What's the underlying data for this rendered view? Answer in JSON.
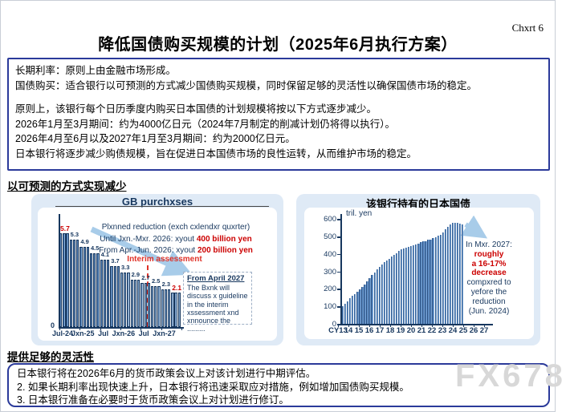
{
  "page": {
    "corner_label": "Chxrt 6",
    "title": "降低国债购买规模的计划（2025年6月执行方案）",
    "watermark": "FX678"
  },
  "policy_box": {
    "lines": [
      "长期利率：原则上由金融市场形成。",
      "国债购买：适合银行以可预测的方式减少国债购买规模，同时保留足够的灵活性以确保国债市场的稳定。",
      "",
      "原则上，该银行每个日历季度内购买日本国债的计划规模将按以下方式逐步减少。",
      "2026年1月至3月期间：约为4000亿日元（2024年7月制定的削减计划仍将得以执行）。",
      "2026年4月至6月以及2027年1月至3月期间：约为2000亿日元。",
      "日本银行将逐步减少购债规模，旨在促进日本国债市场的良性运转，从而维护市场的稳定。"
    ]
  },
  "sections": {
    "predictable": "以可预测的方式实现减少",
    "flexibility": "提供足够的灵活性"
  },
  "flex_box": {
    "lines": [
      "日本银行将在2026年6月的货币政策会议上对该计划进行中期评估。",
      "2. 如果长期利率出现快速上升，日本银行将迅速采取应对措施，例如增加国债购买规模。",
      "3. 日本银行准备在必要时于货币政策会议上对计划进行修订。"
    ]
  },
  "chart_data": [
    {
      "type": "bar",
      "title": "GB purchxses",
      "x_tick_labels": [
        "Jul-24",
        "Jxn-25",
        "Jul",
        "Jxn-26",
        "Jul",
        "Jxn-27"
      ],
      "step_values": [
        5.7,
        5.3,
        4.9,
        4.5,
        4.1,
        3.7,
        3.3,
        2.9,
        2.7,
        2.5,
        2.3,
        2.1
      ],
      "value_labels": [
        "5.7",
        "5.3",
        "4.9",
        "4.5",
        "4.1",
        "3.7",
        "3.3",
        "2.9",
        "2.7",
        "2.5",
        "2.3",
        "2.1"
      ],
      "bars_per_step": 3,
      "red_label_steps": [
        0,
        11
      ],
      "actual_steps": 6,
      "ylim": [
        0,
        6
      ],
      "y_zero_label": "0",
      "annotations": {
        "planned": "Plxnned reduction (exch cxlendxr quxrter)",
        "until_prefix": "Until Jxn.-Mxr. 2026: xyout ",
        "until_red": "400 billion yen",
        "from_prefix": "From Apr.-Jun. 2026: xyout ",
        "from_red": "200 billion yen",
        "interim": "Interim assessment",
        "box_title": "From April 2027",
        "box_lines": [
          "The Bxnk will",
          "discuss x guideline",
          "in the interim",
          "xssessment xnd",
          "xnnounce the",
          "........."
        ]
      }
    },
    {
      "type": "bar",
      "title": "该银行持有的日本国债",
      "ylabel": "tril. yen",
      "y_ticks": [
        0,
        100,
        200,
        300,
        400,
        500,
        600
      ],
      "ylim": [
        0,
        620
      ],
      "x_tick_labels": [
        "CY13",
        "14",
        "15",
        "16",
        "17",
        "18",
        "19",
        "20",
        "21",
        "22",
        "23",
        "24",
        "25",
        "26",
        "27"
      ],
      "values": [
        100,
        115,
        130,
        145,
        160,
        172,
        185,
        198,
        210,
        227,
        244,
        261,
        278,
        294,
        310,
        325,
        340,
        352,
        363,
        374,
        385,
        396,
        406,
        416,
        426,
        431,
        435,
        440,
        444,
        450,
        455,
        461,
        466,
        471,
        475,
        480,
        484,
        490,
        497,
        504,
        511,
        525,
        540,
        555,
        569,
        578,
        580,
        578,
        574,
        570
      ],
      "annotation": {
        "intro": "In Mxr. 2027:",
        "red_lines": [
          "roughly",
          "a 16-17%",
          "decrease"
        ],
        "lines": [
          "compxred to",
          "yefore the",
          "reduction",
          "(Jun. 2024)"
        ]
      }
    }
  ]
}
